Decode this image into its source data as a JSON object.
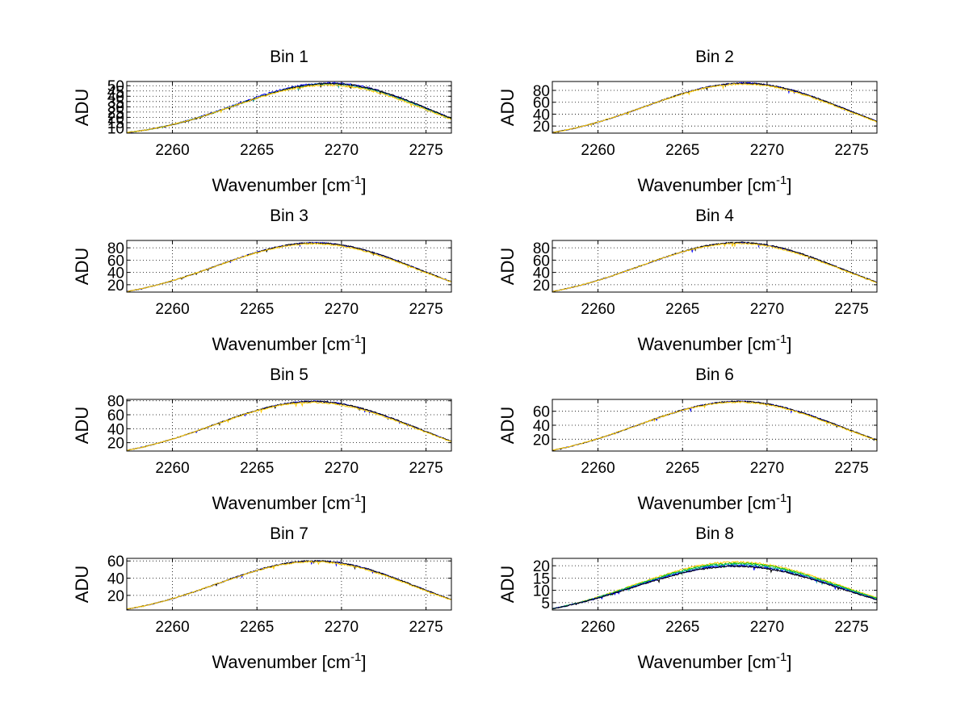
{
  "figure": {
    "background": "#ffffff"
  },
  "chart_data": [
    {
      "type": "line",
      "title": "Bin 1",
      "xlabel": "Wavenumber [cm",
      "xlabel_sup": "-1",
      "xlabel_end": "]",
      "ylabel": "ADU",
      "xlim": [
        2257.3,
        2276.5
      ],
      "ylim": [
        5,
        54
      ],
      "xticks": [
        2260,
        2265,
        2270,
        2275
      ],
      "xtick_labels": [
        "2260",
        "2265",
        "2270",
        "2275"
      ],
      "yticks": [
        10,
        15,
        20,
        25,
        30,
        35,
        40,
        45,
        50
      ],
      "ytick_labels": [
        "10",
        "15",
        "20",
        "25",
        "30",
        "35",
        "40",
        "45",
        "50"
      ],
      "grid": true,
      "series": [
        {
          "name": "blue",
          "color": "#0000ff",
          "peak_x": 2269.5,
          "peak": 52.5,
          "start": 5.5,
          "end": 19,
          "width": 8.2,
          "noise": 0.8
        },
        {
          "name": "teal",
          "color": "#00a0a0",
          "peak_x": 2269.5,
          "peak": 51.5,
          "start": 5.5,
          "end": 18.5,
          "width": 8.2,
          "noise": 0.8
        },
        {
          "name": "black",
          "color": "#000000",
          "peak_x": 2269.6,
          "peak": 52,
          "start": 5.5,
          "end": 19,
          "width": 8.2,
          "noise": 0.7
        },
        {
          "name": "yellow",
          "color": "#ffcc00",
          "peak_x": 2269.4,
          "peak": 50.5,
          "start": 5.5,
          "end": 18,
          "width": 8.2,
          "noise": 0.8
        }
      ]
    },
    {
      "type": "line",
      "title": "Bin 2",
      "xlabel": "Wavenumber [cm",
      "xlabel_sup": "-1",
      "xlabel_end": "]",
      "ylabel": "ADU",
      "xlim": [
        2257.3,
        2276.5
      ],
      "ylim": [
        8,
        95
      ],
      "xticks": [
        2260,
        2265,
        2270,
        2275
      ],
      "xtick_labels": [
        "2260",
        "2265",
        "2270",
        "2275"
      ],
      "yticks": [
        20,
        40,
        60,
        80
      ],
      "ytick_labels": [
        "20",
        "40",
        "60",
        "80"
      ],
      "grid": true,
      "series": [
        {
          "name": "blue",
          "color": "#0000ff",
          "peak_x": 2268.8,
          "peak": 92,
          "start": 9,
          "end": 28,
          "width": 8.4,
          "noise": 1.2
        },
        {
          "name": "black",
          "color": "#000000",
          "peak_x": 2268.8,
          "peak": 92,
          "start": 9,
          "end": 28,
          "width": 8.4,
          "noise": 1.0
        },
        {
          "name": "yellow",
          "color": "#ffcc00",
          "peak_x": 2268.7,
          "peak": 90.5,
          "start": 9,
          "end": 27,
          "width": 8.4,
          "noise": 1.2
        }
      ]
    },
    {
      "type": "line",
      "title": "Bin 3",
      "xlabel": "Wavenumber [cm",
      "xlabel_sup": "-1",
      "xlabel_end": "]",
      "ylabel": "ADU",
      "xlim": [
        2257.3,
        2276.5
      ],
      "ylim": [
        8,
        92
      ],
      "xticks": [
        2260,
        2265,
        2270,
        2275
      ],
      "xtick_labels": [
        "2260",
        "2265",
        "2270",
        "2275"
      ],
      "yticks": [
        20,
        40,
        60,
        80
      ],
      "ytick_labels": [
        "20",
        "40",
        "60",
        "80"
      ],
      "grid": true,
      "series": [
        {
          "name": "blue",
          "color": "#0000ff",
          "peak_x": 2268.6,
          "peak": 88,
          "start": 9,
          "end": 25,
          "width": 8.4,
          "noise": 1.1
        },
        {
          "name": "black",
          "color": "#000000",
          "peak_x": 2268.6,
          "peak": 88,
          "start": 9,
          "end": 25,
          "width": 8.4,
          "noise": 1.0
        },
        {
          "name": "yellow",
          "color": "#ffcc00",
          "peak_x": 2268.5,
          "peak": 86.5,
          "start": 9,
          "end": 24.5,
          "width": 8.4,
          "noise": 1.1
        }
      ]
    },
    {
      "type": "line",
      "title": "Bin 4",
      "xlabel": "Wavenumber [cm",
      "xlabel_sup": "-1",
      "xlabel_end": "]",
      "ylabel": "ADU",
      "xlim": [
        2257.3,
        2276.5
      ],
      "ylim": [
        8,
        92
      ],
      "xticks": [
        2260,
        2265,
        2270,
        2275
      ],
      "xtick_labels": [
        "2260",
        "2265",
        "2270",
        "2275"
      ],
      "yticks": [
        20,
        40,
        60,
        80
      ],
      "ytick_labels": [
        "20",
        "40",
        "60",
        "80"
      ],
      "grid": true,
      "series": [
        {
          "name": "blue",
          "color": "#0000ff",
          "peak_x": 2268.5,
          "peak": 88,
          "start": 9,
          "end": 24,
          "width": 8.4,
          "noise": 1.0
        },
        {
          "name": "black",
          "color": "#000000",
          "peak_x": 2268.5,
          "peak": 88.5,
          "start": 9,
          "end": 24,
          "width": 8.4,
          "noise": 1.0
        },
        {
          "name": "yellow",
          "color": "#ffcc00",
          "peak_x": 2268.4,
          "peak": 87,
          "start": 9,
          "end": 23.5,
          "width": 8.4,
          "noise": 1.0
        }
      ]
    },
    {
      "type": "line",
      "title": "Bin 5",
      "xlabel": "Wavenumber [cm",
      "xlabel_sup": "-1",
      "xlabel_end": "]",
      "ylabel": "ADU",
      "xlim": [
        2257.3,
        2276.5
      ],
      "ylim": [
        8,
        82
      ],
      "xticks": [
        2260,
        2265,
        2270,
        2275
      ],
      "xtick_labels": [
        "2260",
        "2265",
        "2270",
        "2275"
      ],
      "yticks": [
        20,
        40,
        60,
        80
      ],
      "ytick_labels": [
        "20",
        "40",
        "60",
        "80"
      ],
      "grid": true,
      "series": [
        {
          "name": "blue",
          "color": "#0000ff",
          "peak_x": 2268.5,
          "peak": 79,
          "start": 9,
          "end": 22,
          "width": 8.5,
          "noise": 1.0
        },
        {
          "name": "black",
          "color": "#000000",
          "peak_x": 2268.5,
          "peak": 79,
          "start": 9,
          "end": 22,
          "width": 8.5,
          "noise": 0.9
        },
        {
          "name": "yellow",
          "color": "#ffcc00",
          "peak_x": 2268.4,
          "peak": 77.5,
          "start": 9,
          "end": 21.5,
          "width": 8.5,
          "noise": 1.0
        }
      ]
    },
    {
      "type": "line",
      "title": "Bin 6",
      "xlabel": "Wavenumber [cm",
      "xlabel_sup": "-1",
      "xlabel_end": "]",
      "ylabel": "ADU",
      "xlim": [
        2257.3,
        2276.5
      ],
      "ylim": [
        3,
        77
      ],
      "xticks": [
        2260,
        2265,
        2270,
        2275
      ],
      "xtick_labels": [
        "2260",
        "2265",
        "2270",
        "2275"
      ],
      "yticks": [
        20,
        40,
        60
      ],
      "ytick_labels": [
        "20",
        "40",
        "60"
      ],
      "grid": true,
      "series": [
        {
          "name": "blue",
          "color": "#0000ff",
          "peak_x": 2268.4,
          "peak": 74,
          "start": 4,
          "end": 19,
          "width": 8.5,
          "noise": 1.0
        },
        {
          "name": "black",
          "color": "#000000",
          "peak_x": 2268.4,
          "peak": 74,
          "start": 4,
          "end": 19,
          "width": 8.5,
          "noise": 0.9
        },
        {
          "name": "yellow",
          "color": "#ffcc00",
          "peak_x": 2268.3,
          "peak": 73,
          "start": 4,
          "end": 18.5,
          "width": 8.5,
          "noise": 1.0
        }
      ]
    },
    {
      "type": "line",
      "title": "Bin 7",
      "xlabel": "Wavenumber [cm",
      "xlabel_sup": "-1",
      "xlabel_end": "]",
      "ylabel": "ADU",
      "xlim": [
        2257.3,
        2276.5
      ],
      "ylim": [
        3,
        63
      ],
      "xticks": [
        2260,
        2265,
        2270,
        2275
      ],
      "xtick_labels": [
        "2260",
        "2265",
        "2270",
        "2275"
      ],
      "yticks": [
        20,
        40,
        60
      ],
      "ytick_labels": [
        "20",
        "40",
        "60"
      ],
      "grid": true,
      "series": [
        {
          "name": "blue",
          "color": "#0000ff",
          "peak_x": 2268.6,
          "peak": 60,
          "start": 4,
          "end": 15,
          "width": 8.3,
          "noise": 0.8
        },
        {
          "name": "black",
          "color": "#000000",
          "peak_x": 2268.6,
          "peak": 60,
          "start": 4,
          "end": 15,
          "width": 8.3,
          "noise": 0.7
        },
        {
          "name": "yellow",
          "color": "#ffcc00",
          "peak_x": 2268.5,
          "peak": 59,
          "start": 4,
          "end": 14.5,
          "width": 8.3,
          "noise": 0.8
        }
      ]
    },
    {
      "type": "line",
      "title": "Bin 8",
      "xlabel": "Wavenumber [cm",
      "xlabel_sup": "-1",
      "xlabel_end": "]",
      "ylabel": "ADU",
      "xlim": [
        2257.3,
        2276.5
      ],
      "ylim": [
        2,
        23
      ],
      "xticks": [
        2260,
        2265,
        2270,
        2275
      ],
      "xtick_labels": [
        "2260",
        "2265",
        "2270",
        "2275"
      ],
      "yticks": [
        5,
        10,
        15,
        20
      ],
      "ytick_labels": [
        "5",
        "10",
        "15",
        "20"
      ],
      "grid": true,
      "series": [
        {
          "name": "yellow",
          "color": "#ffcc00",
          "peak_x": 2268.2,
          "peak": 21.5,
          "start": 2.5,
          "end": 7,
          "width": 8.6,
          "noise": 0.35
        },
        {
          "name": "green",
          "color": "#00c000",
          "peak_x": 2268.2,
          "peak": 21,
          "start": 2.5,
          "end": 6.8,
          "width": 8.6,
          "noise": 0.35
        },
        {
          "name": "teal",
          "color": "#00a0a0",
          "peak_x": 2268.2,
          "peak": 20.5,
          "start": 2.5,
          "end": 6.5,
          "width": 8.6,
          "noise": 0.35
        },
        {
          "name": "blue",
          "color": "#0000ff",
          "peak_x": 2268.2,
          "peak": 20,
          "start": 2.5,
          "end": 6.3,
          "width": 8.6,
          "noise": 0.35
        },
        {
          "name": "black",
          "color": "#000000",
          "peak_x": 2268.2,
          "peak": 19.8,
          "start": 2.5,
          "end": 6.2,
          "width": 8.6,
          "noise": 0.3
        }
      ]
    }
  ]
}
